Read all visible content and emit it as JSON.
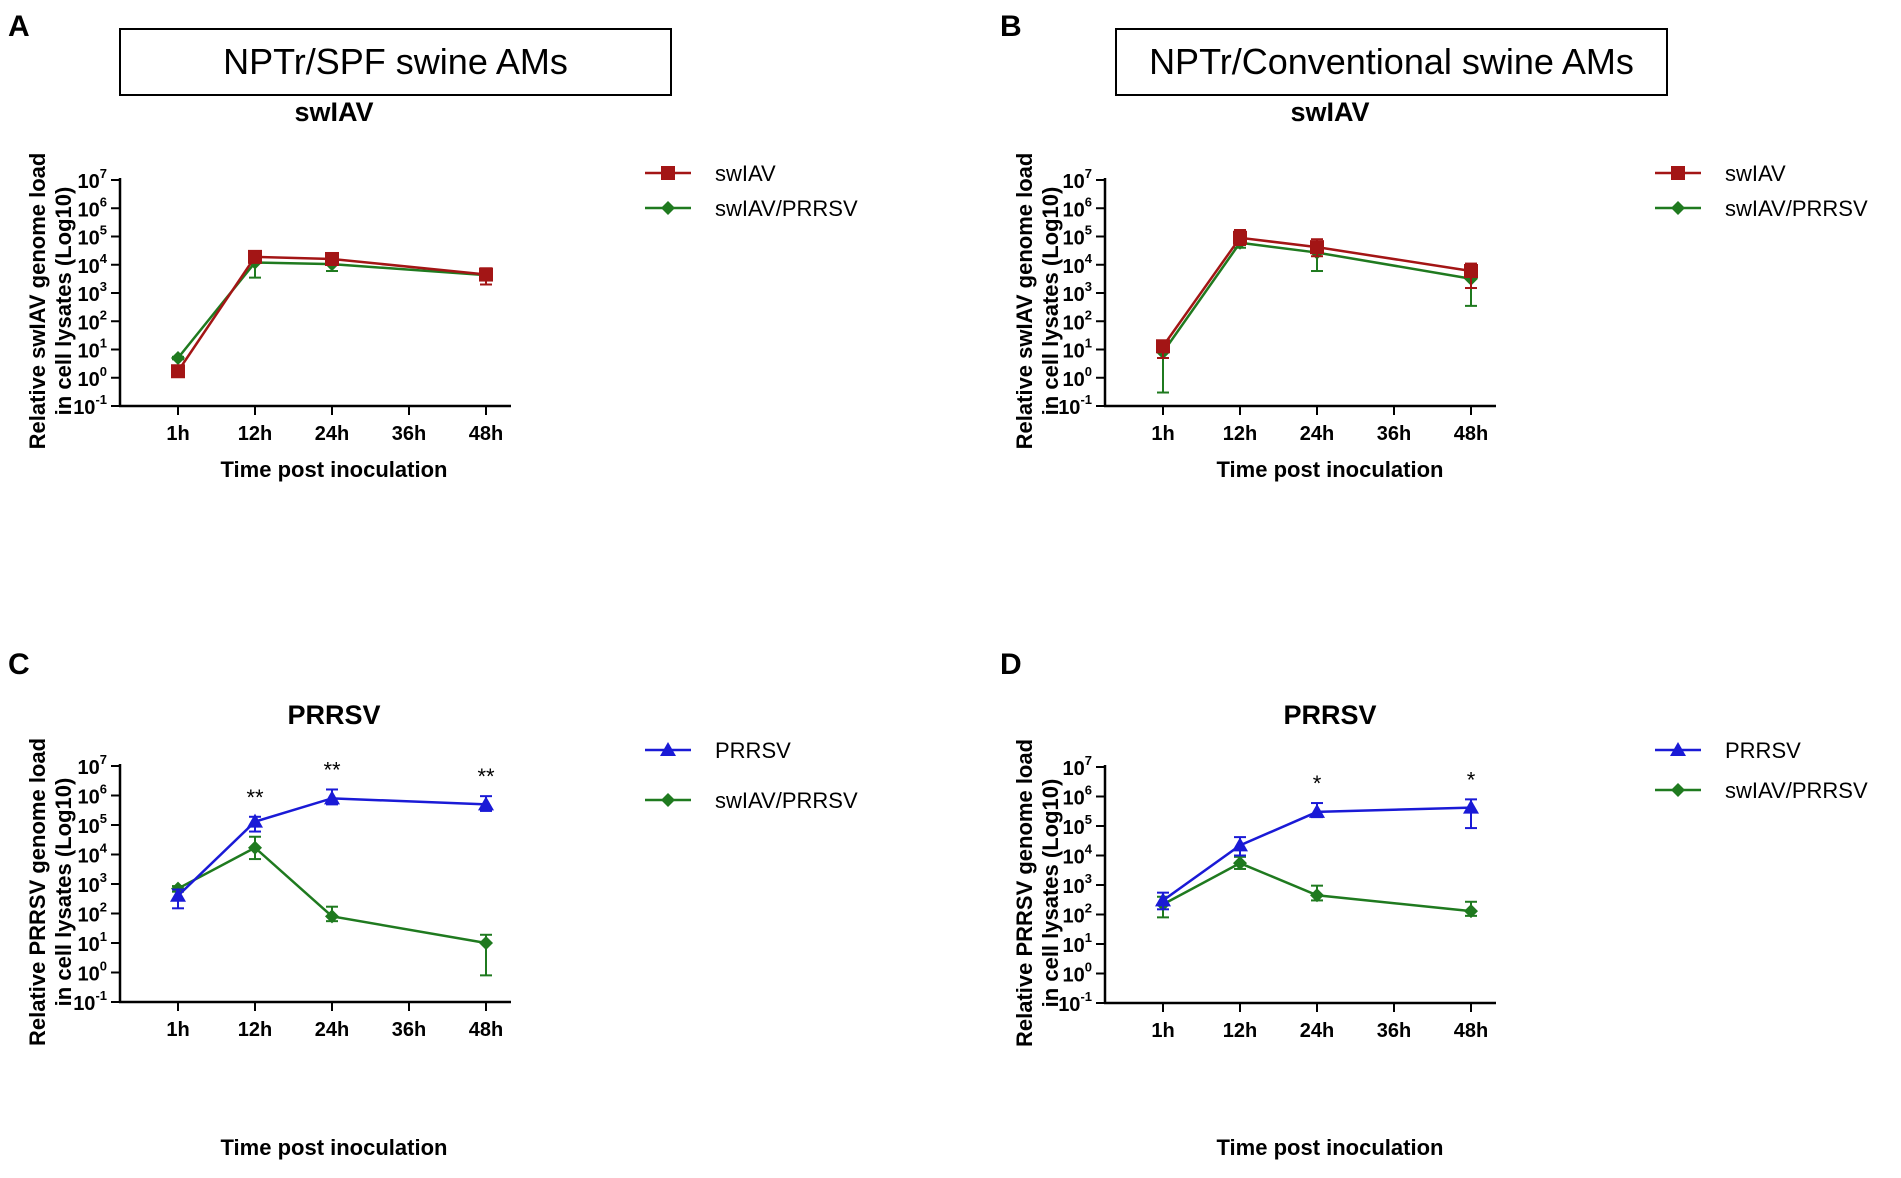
{
  "headers": {
    "A": {
      "letter": "A",
      "box": "NPTr/SPF swine AMs"
    },
    "B": {
      "letter": "B",
      "box": "NPTr/Conventional swine AMs"
    },
    "C": {
      "letter": "C"
    },
    "D": {
      "letter": "D"
    }
  },
  "colors": {
    "swIAV": "#a31515",
    "coinf": "#1f7a1f",
    "PRRSV": "#1a1ad6"
  },
  "chart_data": [
    {
      "panel": "A",
      "type": "line",
      "title": "swIAV",
      "xlabel": "Time post inoculation",
      "ylabel_lines": [
        "Relative swIAV genome load",
        "in cell lysates (Log10)"
      ],
      "categories": [
        "1h",
        "12h",
        "24h",
        "36h",
        "48h"
      ],
      "yscale": "log10",
      "ylim_exp": [
        -1,
        7
      ],
      "series": [
        {
          "name": "swIAV",
          "marker": "square",
          "color": "#a31515",
          "points": [
            {
              "x": "1h",
              "y": 1.7,
              "lo": 1.2,
              "hi": 2.3
            },
            {
              "x": "12h",
              "y": 19000,
              "lo": 12000,
              "hi": 30000
            },
            {
              "x": "24h",
              "y": 16000,
              "lo": 10000,
              "hi": 24000
            },
            {
              "x": "48h",
              "y": 4500,
              "lo": 2000,
              "hi": 7500
            }
          ]
        },
        {
          "name": "swIAV/PRRSV",
          "marker": "diamond",
          "color": "#1f7a1f",
          "points": [
            {
              "x": "1h",
              "y": 5,
              "lo": 4.5,
              "hi": 5.5
            },
            {
              "x": "12h",
              "y": 12000,
              "lo": 3500,
              "hi": 20000
            },
            {
              "x": "24h",
              "y": 10500,
              "lo": 6000,
              "hi": 15000
            },
            {
              "x": "48h",
              "y": 4300,
              "lo": 3000,
              "hi": 6000
            }
          ]
        }
      ],
      "significance": []
    },
    {
      "panel": "B",
      "type": "line",
      "title": "swIAV",
      "xlabel": "Time post inoculation",
      "ylabel_lines": [
        "Relative swIAV genome load",
        "in cell lysates (Log10)"
      ],
      "categories": [
        "1h",
        "12h",
        "24h",
        "36h",
        "48h"
      ],
      "yscale": "log10",
      "ylim_exp": [
        -1,
        7
      ],
      "series": [
        {
          "name": "swIAV",
          "marker": "square",
          "color": "#a31515",
          "points": [
            {
              "x": "1h",
              "y": 13,
              "lo": 5,
              "hi": 20
            },
            {
              "x": "12h",
              "y": 90000,
              "lo": 50000,
              "hi": 170000
            },
            {
              "x": "24h",
              "y": 42000,
              "lo": 20000,
              "hi": 80000
            },
            {
              "x": "48h",
              "y": 6000,
              "lo": 1500,
              "hi": 11000
            }
          ]
        },
        {
          "name": "swIAV/PRRSV",
          "marker": "diamond",
          "color": "#1f7a1f",
          "points": [
            {
              "x": "1h",
              "y": 8,
              "lo": 0.3,
              "hi": 12
            },
            {
              "x": "12h",
              "y": 60000,
              "lo": 40000,
              "hi": 90000
            },
            {
              "x": "24h",
              "y": 27000,
              "lo": 6000,
              "hi": 50000
            },
            {
              "x": "48h",
              "y": 3200,
              "lo": 350,
              "hi": 6000
            }
          ]
        }
      ],
      "significance": []
    },
    {
      "panel": "C",
      "type": "line",
      "title": "PRRSV",
      "xlabel": "Time post inoculation",
      "ylabel_lines": [
        "Relative PRRSV genome load",
        "in cell lysates (Log10)"
      ],
      "categories": [
        "1h",
        "12h",
        "24h",
        "36h",
        "48h"
      ],
      "yscale": "log10",
      "ylim_exp": [
        -1,
        7
      ],
      "series": [
        {
          "name": "PRRSV",
          "marker": "triangle",
          "color": "#1a1ad6",
          "points": [
            {
              "x": "1h",
              "y": 400,
              "lo": 150,
              "hi": 650
            },
            {
              "x": "12h",
              "y": 130000,
              "lo": 60000,
              "hi": 190000
            },
            {
              "x": "24h",
              "y": 800000,
              "lo": 500000,
              "hi": 1600000
            },
            {
              "x": "48h",
              "y": 500000,
              "lo": 300000,
              "hi": 950000
            }
          ]
        },
        {
          "name": "swIAV/PRRSV",
          "marker": "diamond",
          "color": "#1f7a1f",
          "points": [
            {
              "x": "1h",
              "y": 700,
              "lo": 550,
              "hi": 850
            },
            {
              "x": "12h",
              "y": 17000,
              "lo": 7000,
              "hi": 40000
            },
            {
              "x": "24h",
              "y": 80,
              "lo": 55,
              "hi": 170
            },
            {
              "x": "48h",
              "y": 10,
              "lo": 0.8,
              "hi": 19
            }
          ]
        }
      ],
      "significance": [
        {
          "x": "12h",
          "label": "**"
        },
        {
          "x": "24h",
          "label": "**"
        },
        {
          "x": "48h",
          "label": "**"
        }
      ]
    },
    {
      "panel": "D",
      "type": "line",
      "title": "PRRSV",
      "xlabel": "Time post inoculation",
      "ylabel_lines": [
        "Relative PRRSV genome load",
        "in cell lysates (Log10)"
      ],
      "categories": [
        "1h",
        "12h",
        "24h",
        "36h",
        "48h"
      ],
      "yscale": "log10",
      "ylim_exp": [
        -1,
        7
      ],
      "series": [
        {
          "name": "PRRSV",
          "marker": "triangle",
          "color": "#1a1ad6",
          "points": [
            {
              "x": "1h",
              "y": 300,
              "lo": 150,
              "hi": 550
            },
            {
              "x": "12h",
              "y": 22000,
              "lo": 10000,
              "hi": 42000
            },
            {
              "x": "24h",
              "y": 300000,
              "lo": 200000,
              "hi": 600000
            },
            {
              "x": "48h",
              "y": 420000,
              "lo": 85000,
              "hi": 800000
            }
          ]
        },
        {
          "name": "swIAV/PRRSV",
          "marker": "diamond",
          "color": "#1f7a1f",
          "points": [
            {
              "x": "1h",
              "y": 220,
              "lo": 80,
              "hi": 400
            },
            {
              "x": "12h",
              "y": 5500,
              "lo": 3500,
              "hi": 9000
            },
            {
              "x": "24h",
              "y": 450,
              "lo": 300,
              "hi": 950
            },
            {
              "x": "48h",
              "y": 130,
              "lo": 90,
              "hi": 270
            }
          ]
        }
      ],
      "significance": [
        {
          "x": "24h",
          "label": "*"
        },
        {
          "x": "48h",
          "label": "*"
        }
      ]
    }
  ]
}
